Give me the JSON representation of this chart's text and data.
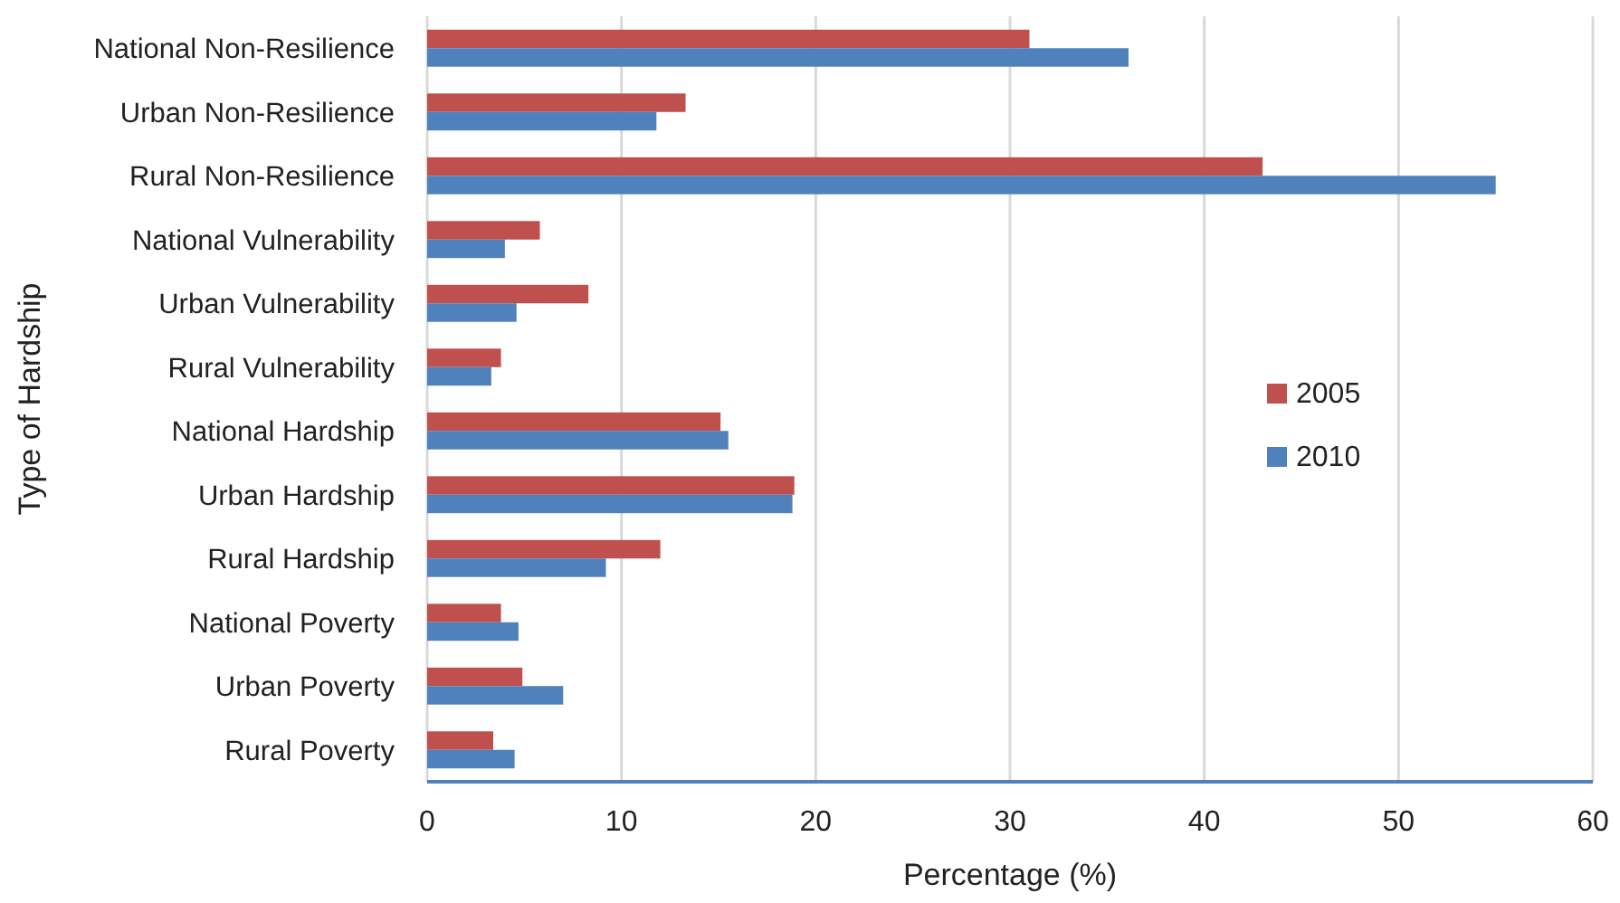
{
  "chart_data": {
    "type": "bar",
    "orientation": "horizontal",
    "xlabel": "Percentage (%)",
    "ylabel": "Type of Hardship",
    "categories": [
      "National Non-Resilience",
      "Urban Non-Resilience",
      "Rural Non-Resilience",
      "National Vulnerability",
      "Urban Vulnerability",
      "Rural Vulnerability",
      "National Hardship",
      "Urban Hardship",
      "Rural Hardship",
      "National Poverty",
      "Urban Poverty",
      "Rural Poverty"
    ],
    "series": [
      {
        "name": "2005",
        "color": "#c0504d",
        "values": [
          31.0,
          13.3,
          43.0,
          5.8,
          8.3,
          3.8,
          15.1,
          18.9,
          12.0,
          3.8,
          4.9,
          3.4
        ]
      },
      {
        "name": "2010",
        "color": "#4f81bd",
        "values": [
          36.1,
          11.8,
          55.0,
          4.0,
          4.6,
          3.3,
          15.5,
          18.8,
          9.2,
          4.7,
          7.0,
          4.5
        ]
      }
    ],
    "xlim": [
      0,
      60
    ],
    "xticks": [
      0,
      10,
      20,
      30,
      40,
      50,
      60
    ],
    "grid": "x",
    "legend": "right"
  }
}
